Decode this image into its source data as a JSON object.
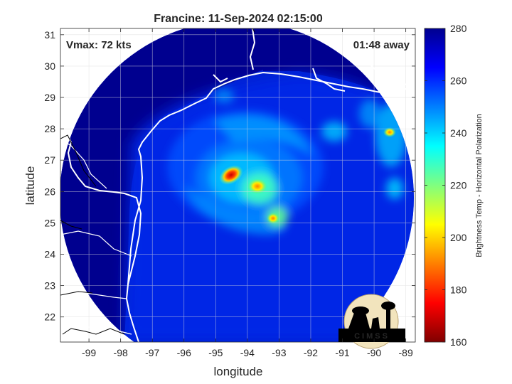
{
  "figure": {
    "title": "Francine: 11-Sep-2024 02:15:00",
    "vmax_label": "Vmax: 72 kts",
    "time_label": "01:48 away",
    "xlabel": "longitude",
    "ylabel": "latitude",
    "colorbar_label": "Brightness Temp - Horizontal Polarization",
    "logo_text": "CIMSS"
  },
  "chart_data": {
    "type": "heatmap",
    "title": "Francine: 11-Sep-2024 02:15:00",
    "xlabel": "longitude",
    "ylabel": "latitude",
    "xlim": [
      -99.9,
      -88.7
    ],
    "ylim": [
      21.2,
      31.2
    ],
    "x_ticks": [
      -99,
      -98,
      -97,
      -96,
      -95,
      -94,
      -93,
      -92,
      -91,
      -90,
      -89
    ],
    "y_ticks": [
      22,
      23,
      24,
      25,
      26,
      27,
      28,
      29,
      30,
      31
    ],
    "grid": true,
    "colorbar": {
      "label": "Brightness Temp - Horizontal Polarization",
      "range": [
        160,
        280
      ],
      "ticks": [
        160,
        180,
        200,
        220,
        240,
        260,
        280
      ],
      "colormap": "jet"
    },
    "swath": {
      "center_lon": -94.2,
      "center_lat": 26.1,
      "background_value": 262
    },
    "storm_center": {
      "lon": -94.75,
      "lat": 26.4,
      "min_value": 178
    },
    "annotations": [
      "Vmax: 72 kts",
      "01:48 away"
    ]
  },
  "colors": {
    "background": "#ffffff",
    "land_outside_swath": "#00008f",
    "coastline": "#ffffff",
    "axis": "#262626",
    "grid": "#dcdcdc"
  }
}
